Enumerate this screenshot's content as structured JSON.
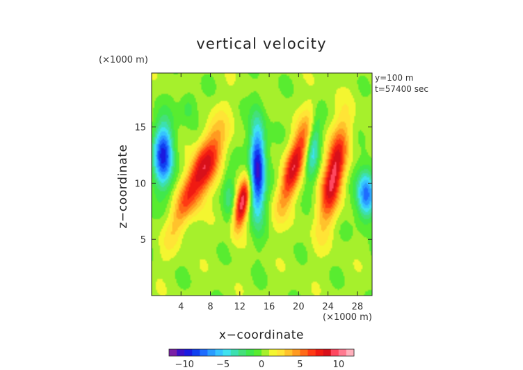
{
  "chart_data": {
    "type": "heatmap",
    "title": "vertical velocity",
    "xlabel": "x−coordinate",
    "ylabel": "z−coordinate",
    "x_unit": "(×1000 m)",
    "y_unit": "(×1000 m)",
    "annotations": [
      "y=100 m",
      "t=57400 sec"
    ],
    "xlim": [
      0,
      30
    ],
    "ylim": [
      0,
      19.8
    ],
    "x_ticks": [
      4,
      8,
      12,
      16,
      20,
      24,
      28
    ],
    "x_tick_labels": [
      "4",
      "8",
      "12",
      "16",
      "20",
      "24",
      "28"
    ],
    "y_ticks": [
      5,
      10,
      15
    ],
    "y_tick_labels": [
      "5",
      "10",
      "15"
    ],
    "colorbar": {
      "range": [
        -12,
        12
      ],
      "ticks": [
        -10,
        -5,
        0,
        5,
        10
      ],
      "tick_labels": [
        "−10",
        "−5",
        "0",
        "5",
        "10"
      ],
      "colors": [
        "#7a1fa6",
        "#3c10c8",
        "#1a1ae0",
        "#1040f0",
        "#1e6cff",
        "#2a9cff",
        "#36c3ff",
        "#3fe2f0",
        "#3ce0b0",
        "#44e07a",
        "#40e84c",
        "#58ec30",
        "#a6f02c",
        "#f4f630",
        "#ffe436",
        "#ffc22c",
        "#ff9a20",
        "#ff6a18",
        "#ff3a14",
        "#f01a12",
        "#d8101a",
        "#ff4860",
        "#ff7a90",
        "#ffb0bc"
      ]
    },
    "background_value": 0.4,
    "features": [
      {
        "kind": "updraft",
        "x": 5.5,
        "z": 10.0,
        "sx": 0.95,
        "sz": 3.2,
        "amp": 6.0,
        "tilt": 1.1
      },
      {
        "kind": "updraft",
        "x": 7.7,
        "z": 11.3,
        "sx": 1.0,
        "sz": 2.4,
        "amp": 6.0,
        "tilt": 1.0
      },
      {
        "kind": "updraft",
        "x": 12.3,
        "z": 8.2,
        "sx": 0.65,
        "sz": 1.6,
        "amp": 9.5,
        "tilt": 0.5
      },
      {
        "kind": "updraft",
        "x": 19.4,
        "z": 11.6,
        "sx": 0.9,
        "sz": 2.8,
        "amp": 8.0,
        "tilt": 0.85
      },
      {
        "kind": "updraft",
        "x": 24.8,
        "z": 10.8,
        "sx": 1.0,
        "sz": 3.0,
        "amp": 9.0,
        "tilt": 0.55
      },
      {
        "kind": "downdraft",
        "x": 1.6,
        "z": 12.5,
        "sx": 0.95,
        "sz": 2.0,
        "amp": -9.5,
        "tilt": 0.0
      },
      {
        "kind": "downdraft",
        "x": 14.4,
        "z": 11.2,
        "sx": 0.75,
        "sz": 3.0,
        "amp": -11.0,
        "tilt": 0.0
      },
      {
        "kind": "downdraft",
        "x": 22.0,
        "z": 13.0,
        "sx": 0.6,
        "sz": 2.0,
        "amp": -4.5,
        "tilt": 0.3
      },
      {
        "kind": "downdraft",
        "x": 29.2,
        "z": 9.0,
        "sx": 0.9,
        "sz": 1.6,
        "amp": -8.0,
        "tilt": 0.0
      },
      {
        "kind": "downdraft",
        "x": 10.5,
        "z": 9.0,
        "sx": 0.6,
        "sz": 1.5,
        "amp": -2.5,
        "tilt": 0.0
      },
      {
        "kind": "downdraft",
        "x": 5.0,
        "z": 16.8,
        "sx": 0.8,
        "sz": 1.0,
        "amp": -2.2,
        "tilt": 0.0
      }
    ]
  }
}
